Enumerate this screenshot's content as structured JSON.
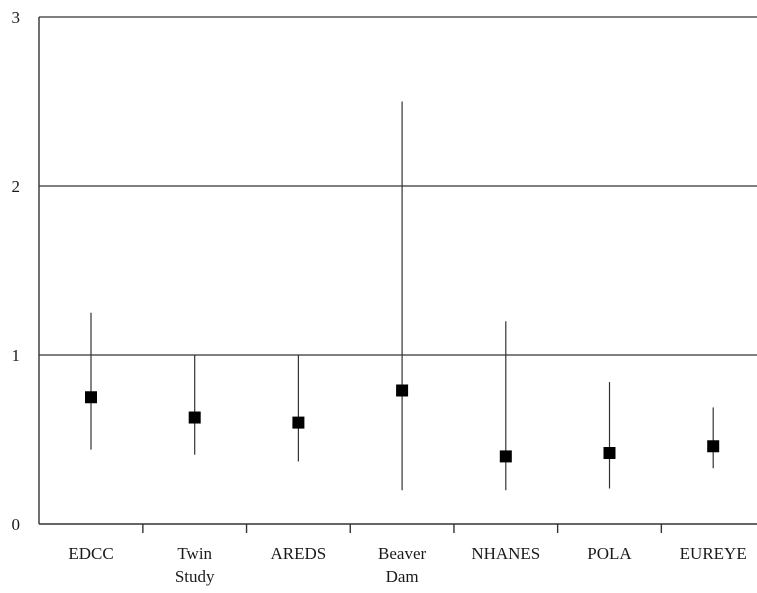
{
  "chart_data": {
    "type": "scatter",
    "subtype": "error-bar",
    "title": "",
    "xlabel": "",
    "ylabel": "",
    "ylim": [
      0,
      3
    ],
    "yticks": [
      0,
      1,
      2,
      3
    ],
    "grid": "horizontal",
    "categories": [
      [
        "EDCC"
      ],
      [
        "Twin",
        "Study"
      ],
      [
        "AREDS"
      ],
      [
        "Beaver",
        "Dam"
      ],
      [
        "NHANES"
      ],
      [
        "POLA"
      ],
      [
        "EUREYE"
      ]
    ],
    "values": [
      0.75,
      0.63,
      0.6,
      0.79,
      0.4,
      0.42,
      0.46
    ],
    "lower": [
      0.44,
      0.41,
      0.37,
      0.2,
      0.2,
      0.21,
      0.33
    ],
    "upper": [
      1.25,
      1.0,
      1.0,
      2.5,
      1.2,
      0.84,
      0.69
    ],
    "colors": {
      "marker": "#000000",
      "line": "#333333"
    }
  }
}
